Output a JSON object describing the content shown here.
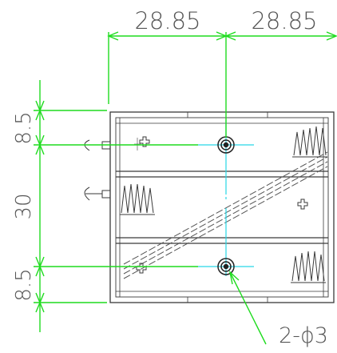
{
  "dimensions": {
    "top_left_width": "28.85",
    "top_right_width": "28.85",
    "left_top_height": "8.5",
    "left_middle_height": "30",
    "left_bottom_height": "8.5",
    "hole_callout": "2-ϕ3"
  },
  "colors": {
    "dimension_line": "#1fdc1f",
    "center_line": "#27d7e6",
    "outline": "#3a3a3a",
    "text": "#555555"
  },
  "icons": {
    "plus_terminal": "plus-icon",
    "spring_terminal": "spring-icon",
    "mounting_hole": "mounting-hole-icon"
  }
}
